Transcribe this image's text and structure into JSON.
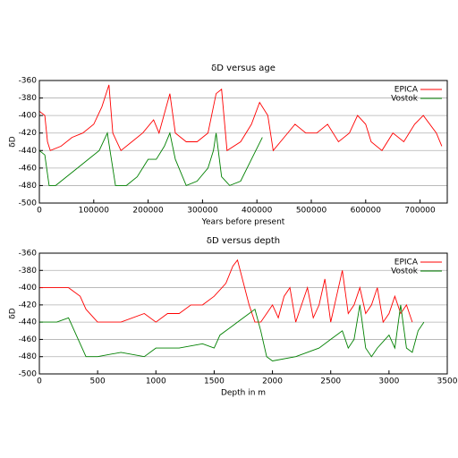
{
  "chart_data": [
    {
      "type": "line",
      "title": "δD versus age",
      "xlabel": "Years before present",
      "ylabel": "δD",
      "xlim": [
        0,
        750000
      ],
      "xticks": [
        0,
        100000,
        200000,
        300000,
        400000,
        500000,
        600000,
        700000
      ],
      "ylim": [
        -500,
        -360
      ],
      "yticks": [
        -360,
        -380,
        -400,
        -420,
        -440,
        -460,
        -480,
        -500
      ],
      "grid": true,
      "legend": "upper right",
      "series": [
        {
          "name": "EPICA",
          "color": "#ff0000",
          "x": [
            0,
            10000,
            15000,
            20000,
            40000,
            60000,
            80000,
            100000,
            115000,
            128000,
            135000,
            150000,
            170000,
            190000,
            210000,
            220000,
            240000,
            250000,
            270000,
            290000,
            310000,
            325000,
            335000,
            345000,
            370000,
            390000,
            405000,
            420000,
            430000,
            450000,
            470000,
            490000,
            510000,
            530000,
            550000,
            570000,
            585000,
            600000,
            610000,
            630000,
            650000,
            670000,
            690000,
            706000,
            730000,
            740000
          ],
          "values": [
            -395,
            -400,
            -430,
            -440,
            -435,
            -425,
            -420,
            -410,
            -390,
            -365,
            -420,
            -440,
            -430,
            -420,
            -405,
            -420,
            -375,
            -420,
            -430,
            -430,
            -420,
            -375,
            -370,
            -440,
            -430,
            -410,
            -385,
            -400,
            -440,
            -425,
            -410,
            -420,
            -420,
            -410,
            -430,
            -420,
            -400,
            -410,
            -430,
            -440,
            -420,
            -430,
            -410,
            -400,
            -420,
            -435
          ]
        },
        {
          "name": "Vostok",
          "color": "#008000",
          "x": [
            0,
            10000,
            18000,
            30000,
            50000,
            70000,
            90000,
            110000,
            125000,
            130000,
            140000,
            160000,
            180000,
            200000,
            215000,
            230000,
            240000,
            250000,
            270000,
            290000,
            310000,
            320000,
            325000,
            335000,
            350000,
            370000,
            390000,
            410000
          ],
          "values": [
            -440,
            -445,
            -480,
            -480,
            -470,
            -460,
            -450,
            -440,
            -420,
            -440,
            -480,
            -480,
            -470,
            -450,
            -450,
            -435,
            -420,
            -450,
            -480,
            -475,
            -460,
            -440,
            -420,
            -470,
            -480,
            -475,
            -450,
            -425
          ]
        }
      ]
    },
    {
      "type": "line",
      "title": "δD versus depth",
      "xlabel": "Depth in m",
      "ylabel": "δD",
      "xlim": [
        0,
        3500
      ],
      "xticks": [
        0,
        500,
        1000,
        1500,
        2000,
        2500,
        3000,
        3500
      ],
      "ylim": [
        -500,
        -360
      ],
      "yticks": [
        -360,
        -380,
        -400,
        -420,
        -440,
        -460,
        -480,
        -500
      ],
      "grid": true,
      "legend": "upper right",
      "series": [
        {
          "name": "EPICA",
          "color": "#ff0000",
          "x": [
            0,
            100,
            250,
            350,
            400,
            500,
            700,
            900,
            1000,
            1100,
            1200,
            1300,
            1400,
            1500,
            1600,
            1660,
            1700,
            1800,
            1850,
            1900,
            1950,
            2000,
            2050,
            2100,
            2150,
            2200,
            2250,
            2300,
            2350,
            2400,
            2450,
            2500,
            2550,
            2600,
            2650,
            2700,
            2750,
            2800,
            2850,
            2900,
            2950,
            3000,
            3050,
            3100,
            3150,
            3200
          ],
          "values": [
            -400,
            -400,
            -400,
            -410,
            -425,
            -440,
            -440,
            -430,
            -440,
            -430,
            -430,
            -420,
            -420,
            -410,
            -395,
            -375,
            -368,
            -420,
            -440,
            -440,
            -430,
            -420,
            -435,
            -410,
            -400,
            -440,
            -420,
            -400,
            -435,
            -420,
            -390,
            -440,
            -410,
            -380,
            -430,
            -420,
            -400,
            -430,
            -420,
            -400,
            -440,
            -430,
            -410,
            -430,
            -420,
            -440
          ]
        },
        {
          "name": "Vostok",
          "color": "#008000",
          "x": [
            0,
            150,
            250,
            300,
            400,
            500,
            700,
            900,
            1000,
            1200,
            1400,
            1500,
            1550,
            1650,
            1700,
            1800,
            1850,
            1900,
            1950,
            2000,
            2200,
            2400,
            2500,
            2600,
            2650,
            2700,
            2750,
            2800,
            2850,
            2900,
            3000,
            3050,
            3100,
            3150,
            3200,
            3250,
            3300
          ],
          "values": [
            -440,
            -440,
            -435,
            -450,
            -480,
            -480,
            -475,
            -480,
            -470,
            -470,
            -465,
            -470,
            -455,
            -445,
            -440,
            -430,
            -425,
            -450,
            -480,
            -485,
            -480,
            -470,
            -460,
            -450,
            -470,
            -460,
            -420,
            -470,
            -480,
            -470,
            -455,
            -470,
            -420,
            -470,
            -475,
            -450,
            -440
          ]
        }
      ]
    }
  ]
}
